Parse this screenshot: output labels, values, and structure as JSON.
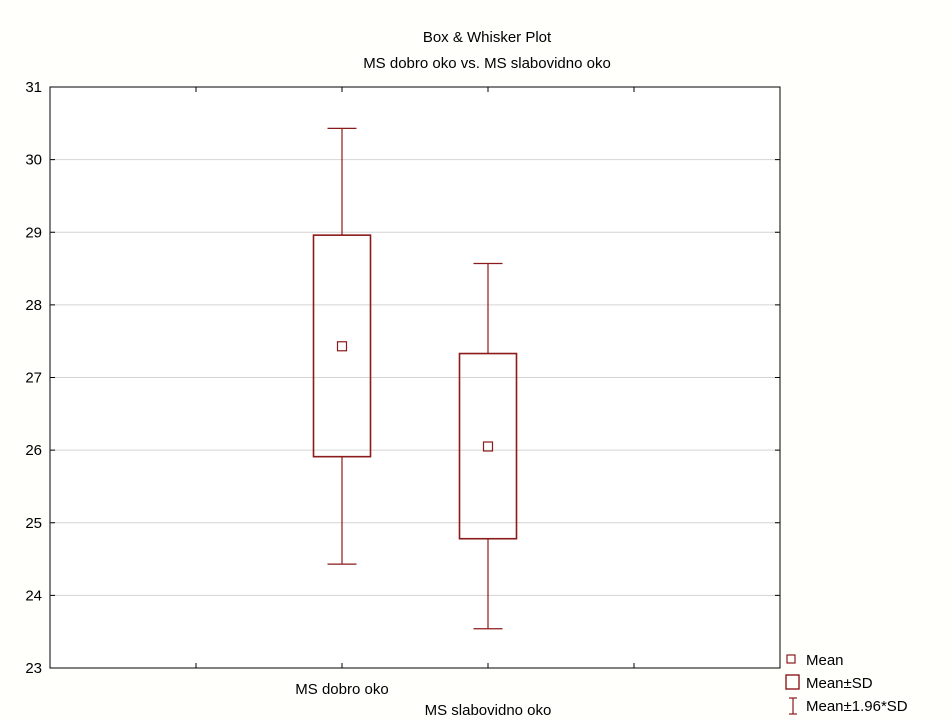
{
  "chart_data": {
    "type": "box",
    "title": "Box & Whisker Plot",
    "subtitle": "MS dobro oko vs. MS slabovidno oko",
    "xlabel": "",
    "ylabel": "",
    "ylim": [
      23,
      31
    ],
    "yticks": [
      "23",
      "24",
      "25",
      "26",
      "27",
      "28",
      "29",
      "30",
      "31"
    ],
    "grid": true,
    "categories": [
      "MS dobro oko",
      "MS slabovidno oko"
    ],
    "boxes": [
      {
        "category": "MS dobro oko",
        "mean": 27.43,
        "box_low": 25.91,
        "box_high": 28.96,
        "whisker_low": 24.43,
        "whisker_high": 30.43
      },
      {
        "category": "MS slabovidno oko",
        "mean": 26.05,
        "box_low": 24.78,
        "box_high": 27.33,
        "whisker_low": 23.54,
        "whisker_high": 28.57
      }
    ],
    "legend": {
      "position": "bottom-right",
      "items": [
        "Mean",
        "Mean±SD",
        "Mean±1.96*SD"
      ]
    },
    "colors": {
      "series": "#8b1a1a",
      "axis": "#000000",
      "grid": "#d4d4d4",
      "background": "#fffffb",
      "plot_background": "#ffffff"
    }
  }
}
